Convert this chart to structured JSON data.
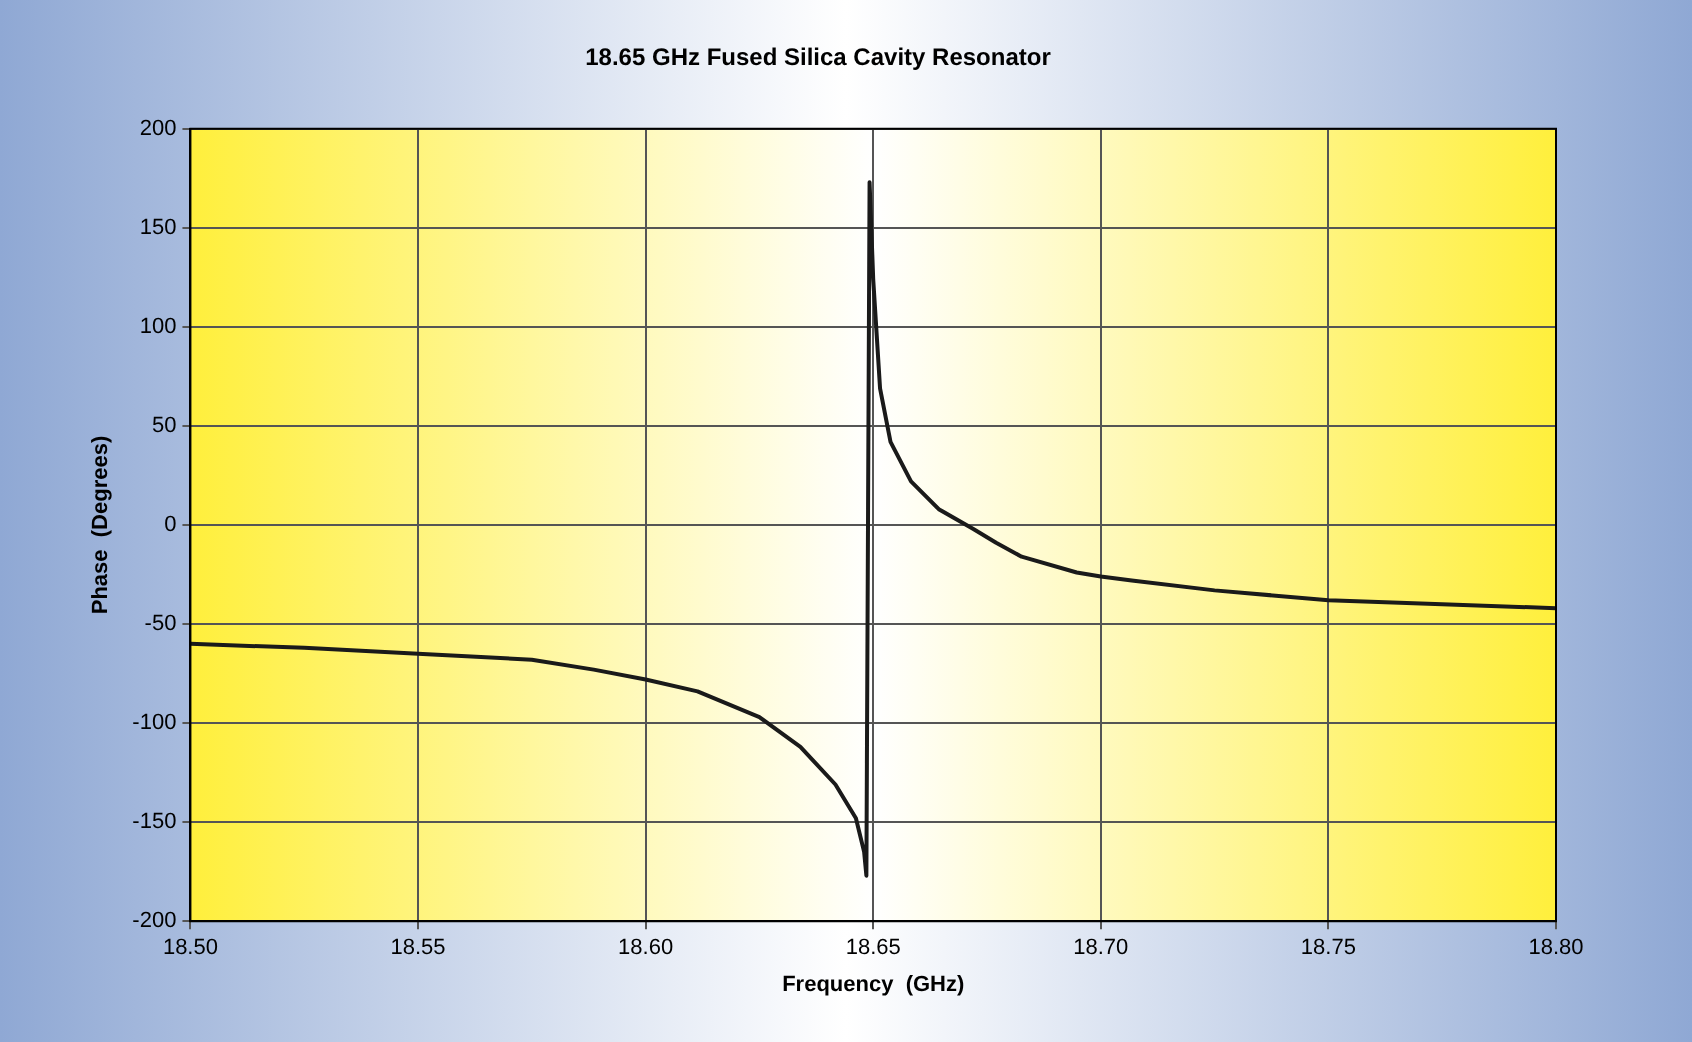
{
  "chart_data": {
    "type": "line",
    "title": "18.65 GHz Fused Silica Cavity Resonator",
    "xlabel": "Frequency  (GHz)",
    "ylabel": "Phase  (Degrees)",
    "x": [
      18.5,
      18.525,
      18.55,
      18.575,
      18.5886,
      18.6,
      18.6114,
      18.625,
      18.634,
      18.6417,
      18.6462,
      18.648,
      18.6485,
      18.6492,
      18.65,
      18.6515,
      18.6538,
      18.6583,
      18.6644,
      18.672,
      18.677,
      18.6826,
      18.6947,
      18.7,
      18.7068,
      18.725,
      18.75,
      18.775,
      18.8
    ],
    "series": [
      {
        "color": "#1a1a1a",
        "values": [
          -60,
          -62,
          -65,
          -68,
          -73,
          -78,
          -84,
          -97,
          -112,
          -131,
          -148,
          -165,
          -177,
          173,
          124,
          69,
          42,
          22,
          8,
          -2,
          -9,
          -16,
          -24,
          -26,
          -28,
          -33,
          -38,
          -40,
          -42
        ]
      }
    ],
    "xlim": [
      18.5,
      18.8
    ],
    "xticks": [
      {
        "value": 18.5,
        "label": "18.50"
      },
      {
        "value": 18.55,
        "label": "18.55"
      },
      {
        "value": 18.6,
        "label": "18.60"
      },
      {
        "value": 18.65,
        "label": "18.65"
      },
      {
        "value": 18.7,
        "label": "18.70"
      },
      {
        "value": 18.75,
        "label": "18.75"
      },
      {
        "value": 18.8,
        "label": "18.80"
      }
    ],
    "ylim": [
      -200,
      200
    ],
    "yticks": [
      -200,
      -150,
      -100,
      -50,
      0,
      50,
      100,
      150,
      200
    ],
    "grid": true,
    "legend": false,
    "marker": "none",
    "line_style": "solid"
  }
}
